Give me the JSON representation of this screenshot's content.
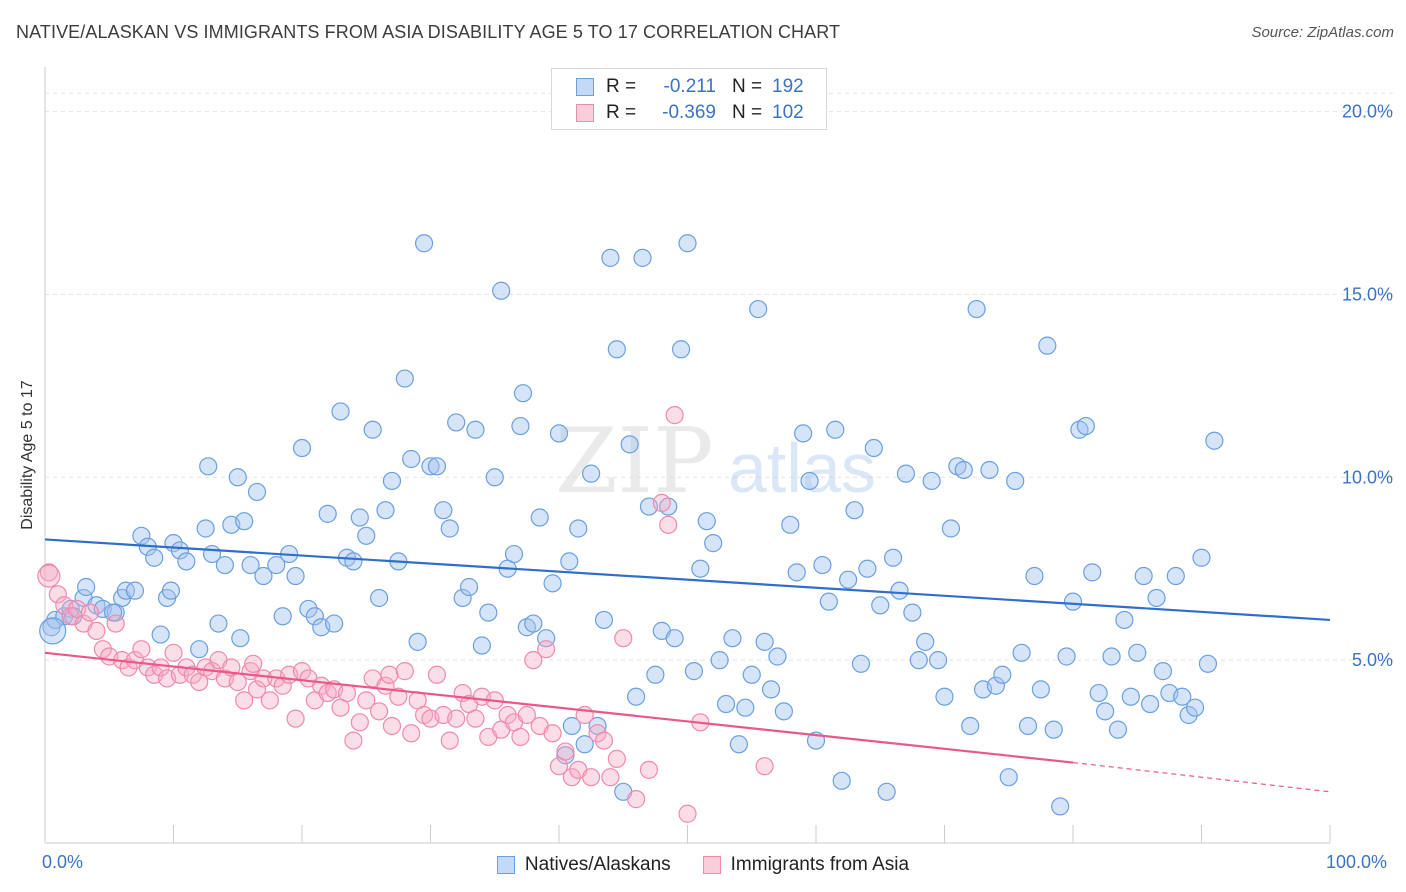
{
  "title": "NATIVE/ALASKAN VS IMMIGRANTS FROM ASIA DISABILITY AGE 5 TO 17 CORRELATION CHART",
  "source": "Source: ZipAtlas.com",
  "watermark": {
    "zip": "ZIP",
    "atlas": "atlas"
  },
  "legend": [
    {
      "r_label": "R =",
      "r_value": "-0.211",
      "n_label": "N =",
      "n_value": "192",
      "color": "#6aa0e0"
    },
    {
      "r_label": "R =",
      "r_value": "-0.369",
      "n_label": "N =",
      "n_value": "102",
      "color": "#f08aab"
    }
  ],
  "chart_data": {
    "type": "scatter",
    "title": "NATIVE/ALASKAN VS IMMIGRANTS FROM ASIA DISABILITY AGE 5 TO 17 CORRELATION CHART",
    "xlabel": "",
    "ylabel": "Disability Age 5 to 17",
    "xlim": [
      0,
      100
    ],
    "ylim": [
      0,
      21
    ],
    "x_tick_labels": [
      "0.0%",
      "100.0%"
    ],
    "y_ticks": [
      5,
      10,
      15,
      20
    ],
    "y_tick_labels": [
      "5.0%",
      "10.0%",
      "15.0%",
      "20.0%"
    ],
    "grid": "horizontal dashed",
    "legend_position": "top-center",
    "series": [
      {
        "name": "Natives/Alaskans",
        "color": "#6aa0e0",
        "trend": {
          "x": [
            0,
            100
          ],
          "y": [
            8.3,
            6.1
          ]
        },
        "points": [
          [
            0.5,
            5.9
          ],
          [
            0.8,
            6.1
          ],
          [
            1.5,
            6.2
          ],
          [
            2,
            6.4
          ],
          [
            2.2,
            6.2
          ],
          [
            3,
            6.7
          ],
          [
            3.2,
            7.0
          ],
          [
            4,
            6.5
          ],
          [
            4.5,
            6.4
          ],
          [
            5.5,
            6.3
          ],
          [
            6,
            6.7
          ],
          [
            6.3,
            6.9
          ],
          [
            7,
            6.9
          ],
          [
            7.5,
            8.4
          ],
          [
            8,
            8.1
          ],
          [
            8.5,
            7.8
          ],
          [
            9,
            5.7
          ],
          [
            9.5,
            6.7
          ],
          [
            10,
            8.2
          ],
          [
            10.5,
            8.0
          ],
          [
            11,
            7.7
          ],
          [
            12,
            5.3
          ],
          [
            12.5,
            8.6
          ],
          [
            13,
            7.9
          ],
          [
            13.5,
            6.0
          ],
          [
            14,
            7.6
          ],
          [
            14.5,
            8.7
          ],
          [
            15,
            10.0
          ],
          [
            15.5,
            8.8
          ],
          [
            16,
            7.6
          ],
          [
            16.5,
            9.6
          ],
          [
            17,
            7.3
          ],
          [
            18,
            7.6
          ],
          [
            18.5,
            6.2
          ],
          [
            19,
            7.9
          ],
          [
            19.5,
            7.3
          ],
          [
            20,
            10.8
          ],
          [
            20.5,
            6.4
          ],
          [
            21,
            6.2
          ],
          [
            21.5,
            5.9
          ],
          [
            22,
            9.0
          ],
          [
            22.5,
            6.0
          ],
          [
            23,
            11.8
          ],
          [
            23.5,
            7.8
          ],
          [
            24,
            7.7
          ],
          [
            24.5,
            8.9
          ],
          [
            25,
            8.4
          ],
          [
            25.5,
            11.3
          ],
          [
            26,
            6.7
          ],
          [
            26.5,
            9.1
          ],
          [
            27,
            9.9
          ],
          [
            27.5,
            7.7
          ],
          [
            28,
            12.7
          ],
          [
            28.5,
            10.5
          ],
          [
            29,
            5.5
          ],
          [
            29.5,
            16.4
          ],
          [
            30,
            10.3
          ],
          [
            30.5,
            10.3
          ],
          [
            31,
            9.1
          ],
          [
            31.5,
            8.6
          ],
          [
            32,
            11.5
          ],
          [
            32.5,
            6.7
          ],
          [
            33,
            7.0
          ],
          [
            33.5,
            11.3
          ],
          [
            34,
            5.4
          ],
          [
            34.5,
            6.3
          ],
          [
            35,
            10.0
          ],
          [
            35.5,
            15.1
          ],
          [
            36,
            7.5
          ],
          [
            36.5,
            7.9
          ],
          [
            37,
            11.4
          ],
          [
            37.5,
            5.9
          ],
          [
            38,
            6.0
          ],
          [
            38.5,
            8.9
          ],
          [
            39,
            5.6
          ],
          [
            39.5,
            7.1
          ],
          [
            40,
            11.2
          ],
          [
            40.5,
            2.4
          ],
          [
            40.8,
            7.7
          ],
          [
            41,
            3.2
          ],
          [
            41.5,
            8.6
          ],
          [
            42,
            2.7
          ],
          [
            42.5,
            10.1
          ],
          [
            43,
            3.2
          ],
          [
            43.5,
            6.1
          ],
          [
            44,
            16.0
          ],
          [
            44.5,
            13.5
          ],
          [
            45,
            1.4
          ],
          [
            45.5,
            10.9
          ],
          [
            46,
            4.0
          ],
          [
            46.5,
            16.0
          ],
          [
            47,
            9.2
          ],
          [
            47.5,
            4.6
          ],
          [
            48,
            5.8
          ],
          [
            48.5,
            9.2
          ],
          [
            49,
            5.6
          ],
          [
            49.5,
            13.5
          ],
          [
            50,
            16.4
          ],
          [
            50.5,
            4.7
          ],
          [
            51,
            7.5
          ],
          [
            51.5,
            8.8
          ],
          [
            52,
            8.2
          ],
          [
            52.5,
            5.0
          ],
          [
            53,
            3.8
          ],
          [
            53.5,
            5.6
          ],
          [
            54,
            2.7
          ],
          [
            54.5,
            3.7
          ],
          [
            55,
            4.6
          ],
          [
            55.5,
            14.6
          ],
          [
            56,
            5.5
          ],
          [
            56.5,
            4.2
          ],
          [
            57,
            5.1
          ],
          [
            57.5,
            3.6
          ],
          [
            58,
            8.7
          ],
          [
            58.5,
            7.4
          ],
          [
            59,
            11.2
          ],
          [
            59.5,
            9.9
          ],
          [
            60,
            2.8
          ],
          [
            60.5,
            7.6
          ],
          [
            61,
            6.6
          ],
          [
            61.5,
            11.3
          ],
          [
            62,
            1.7
          ],
          [
            62.5,
            7.2
          ],
          [
            63,
            9.1
          ],
          [
            63.5,
            4.9
          ],
          [
            64,
            7.5
          ],
          [
            64.5,
            10.8
          ],
          [
            65,
            6.5
          ],
          [
            65.5,
            1.4
          ],
          [
            66,
            7.8
          ],
          [
            66.5,
            6.9
          ],
          [
            67,
            10.1
          ],
          [
            67.5,
            6.3
          ],
          [
            68,
            5.0
          ],
          [
            68.5,
            5.5
          ],
          [
            69,
            9.9
          ],
          [
            69.5,
            5.0
          ],
          [
            70,
            4.0
          ],
          [
            70.5,
            8.6
          ],
          [
            71,
            10.3
          ],
          [
            71.5,
            10.2
          ],
          [
            72,
            3.2
          ],
          [
            72.5,
            14.6
          ],
          [
            73,
            4.2
          ],
          [
            73.5,
            10.2
          ],
          [
            74,
            4.3
          ],
          [
            74.5,
            4.6
          ],
          [
            75,
            1.8
          ],
          [
            75.5,
            9.9
          ],
          [
            76,
            5.2
          ],
          [
            76.5,
            3.2
          ],
          [
            77,
            7.3
          ],
          [
            77.5,
            4.2
          ],
          [
            78,
            13.6
          ],
          [
            78.5,
            3.1
          ],
          [
            79,
            1.0
          ],
          [
            79.5,
            5.1
          ],
          [
            80,
            6.6
          ],
          [
            80.5,
            11.3
          ],
          [
            81,
            11.4
          ],
          [
            81.5,
            7.4
          ],
          [
            82,
            4.1
          ],
          [
            82.5,
            3.6
          ],
          [
            83,
            5.1
          ],
          [
            83.5,
            3.1
          ],
          [
            84,
            6.1
          ],
          [
            84.5,
            4.0
          ],
          [
            85,
            5.2
          ],
          [
            85.5,
            7.3
          ],
          [
            86,
            3.8
          ],
          [
            86.5,
            6.7
          ],
          [
            87,
            4.7
          ],
          [
            87.5,
            4.1
          ],
          [
            88,
            7.3
          ],
          [
            88.5,
            4.0
          ],
          [
            89,
            3.5
          ],
          [
            89.5,
            3.7
          ],
          [
            90,
            7.8
          ],
          [
            90.5,
            4.9
          ],
          [
            91,
            11.0
          ],
          [
            15.2,
            5.6
          ],
          [
            5.3,
            6.3
          ],
          [
            9.8,
            6.9
          ],
          [
            12.7,
            10.3
          ],
          [
            37.2,
            12.3
          ]
        ]
      },
      {
        "name": "Immigrants from Asia",
        "color": "#f08aab",
        "trend": {
          "x": [
            0,
            80
          ],
          "y": [
            5.2,
            2.2
          ]
        },
        "trend_dashed": {
          "x": [
            80,
            100
          ],
          "y": [
            2.2,
            1.4
          ]
        },
        "points": [
          [
            0.3,
            7.4
          ],
          [
            1,
            6.8
          ],
          [
            1.5,
            6.5
          ],
          [
            2,
            6.2
          ],
          [
            2.5,
            6.4
          ],
          [
            3,
            6.0
          ],
          [
            3.5,
            6.3
          ],
          [
            4,
            5.8
          ],
          [
            4.5,
            5.3
          ],
          [
            5,
            5.1
          ],
          [
            5.5,
            6.0
          ],
          [
            6,
            5.0
          ],
          [
            6.5,
            4.8
          ],
          [
            7,
            5.0
          ],
          [
            7.5,
            5.3
          ],
          [
            8,
            4.8
          ],
          [
            8.5,
            4.6
          ],
          [
            9,
            4.8
          ],
          [
            9.5,
            4.5
          ],
          [
            10,
            5.2
          ],
          [
            10.5,
            4.6
          ],
          [
            11,
            4.8
          ],
          [
            11.5,
            4.6
          ],
          [
            12,
            4.4
          ],
          [
            12.5,
            4.8
          ],
          [
            13,
            4.7
          ],
          [
            13.5,
            5.0
          ],
          [
            14,
            4.5
          ],
          [
            14.5,
            4.8
          ],
          [
            15,
            4.4
          ],
          [
            15.5,
            3.9
          ],
          [
            16,
            4.7
          ],
          [
            16.5,
            4.2
          ],
          [
            17,
            4.5
          ],
          [
            17.5,
            3.9
          ],
          [
            18,
            4.5
          ],
          [
            18.5,
            4.3
          ],
          [
            19,
            4.6
          ],
          [
            19.5,
            3.4
          ],
          [
            20,
            4.7
          ],
          [
            20.5,
            4.5
          ],
          [
            21,
            3.9
          ],
          [
            21.5,
            4.3
          ],
          [
            22,
            4.1
          ],
          [
            22.5,
            4.2
          ],
          [
            23,
            3.7
          ],
          [
            23.5,
            4.1
          ],
          [
            24,
            2.8
          ],
          [
            24.5,
            3.3
          ],
          [
            25,
            3.9
          ],
          [
            25.5,
            4.5
          ],
          [
            26,
            3.6
          ],
          [
            26.5,
            4.3
          ],
          [
            27,
            3.2
          ],
          [
            27.5,
            4.0
          ],
          [
            28,
            4.7
          ],
          [
            28.5,
            3.0
          ],
          [
            29,
            3.9
          ],
          [
            29.5,
            3.5
          ],
          [
            30,
            3.4
          ],
          [
            30.5,
            4.6
          ],
          [
            31,
            3.5
          ],
          [
            31.5,
            2.8
          ],
          [
            32,
            3.4
          ],
          [
            32.5,
            4.1
          ],
          [
            33,
            3.8
          ],
          [
            33.5,
            3.4
          ],
          [
            34,
            4.0
          ],
          [
            34.5,
            2.9
          ],
          [
            35,
            3.9
          ],
          [
            35.5,
            3.1
          ],
          [
            36,
            3.5
          ],
          [
            36.5,
            3.3
          ],
          [
            37,
            2.9
          ],
          [
            37.5,
            3.5
          ],
          [
            38,
            5.0
          ],
          [
            38.5,
            3.2
          ],
          [
            39,
            5.3
          ],
          [
            39.5,
            3.0
          ],
          [
            40,
            2.1
          ],
          [
            40.5,
            2.5
          ],
          [
            41,
            1.8
          ],
          [
            41.5,
            2.0
          ],
          [
            42,
            3.5
          ],
          [
            42.5,
            1.8
          ],
          [
            43,
            3.0
          ],
          [
            43.5,
            2.8
          ],
          [
            44,
            1.8
          ],
          [
            45,
            5.6
          ],
          [
            46,
            1.2
          ],
          [
            47,
            2.0
          ],
          [
            48,
            9.3
          ],
          [
            48.5,
            8.7
          ],
          [
            49,
            11.7
          ],
          [
            50,
            0.8
          ],
          [
            16.2,
            4.9
          ],
          [
            26.8,
            4.6
          ],
          [
            44.5,
            2.3
          ],
          [
            51,
            3.3
          ],
          [
            56,
            2.1
          ]
        ]
      }
    ]
  },
  "bottom_legend": [
    "Natives/Alaskans",
    "Immigrants from Asia"
  ],
  "x_labels": {
    "left": "0.0%",
    "right": "100.0%"
  }
}
